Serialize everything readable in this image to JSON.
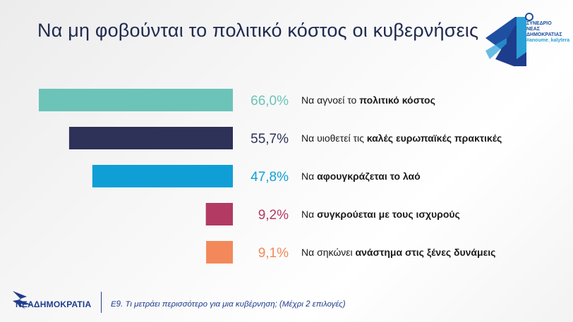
{
  "title": "Να μη φοβούνται το πολιτικό κόστος οι κυβερνήσεις",
  "logo": {
    "line1": "ΣΥΝΕΔΡΙΟ",
    "line2": "ΝΕΑΣ",
    "line3": "ΔΗΜΟΚΡΑΤΙΑΣ",
    "tag": "#anoume_kalytera",
    "party": "ΝΕΑΔΗΜΟΚΡΑΤΙΑ"
  },
  "footnote": {
    "code": "Ε9.",
    "question": "Τι μετράει περισσότερο για μια κυβέρνηση; (Μέχρι 2 επιλογές)"
  },
  "chart_data": {
    "type": "bar",
    "orientation": "horizontal",
    "categories": [
      "Να αγνοεί το πολιτικό κόστος",
      "Να υιοθετεί τις καλές ευρωπαϊκές πρακτικές",
      "Να αφουγκράζεται το λαό",
      "Να συγκρούεται με τους ισχυρούς",
      "Να σηκώνει ανάστημα στις ξένες δυνάμεις"
    ],
    "category_parts": [
      {
        "plain": "Να αγνοεί το ",
        "bold": "πολιτικό κόστος"
      },
      {
        "plain": "Να υιοθετεί τις ",
        "bold": "καλές ευρωπαϊκές πρακτικές"
      },
      {
        "plain": "Να ",
        "bold": "αφουγκράζεται το λαό"
      },
      {
        "plain": "Να ",
        "bold": "συγκρούεται με τους ισχυρούς"
      },
      {
        "plain": "Να σηκώνει ",
        "bold": "ανάστημα στις ξένες δυνάμεις"
      }
    ],
    "values": [
      66.0,
      55.7,
      47.8,
      9.2,
      9.1
    ],
    "value_labels": [
      "66,0%",
      "55,7%",
      "47,8%",
      "9,2%",
      "9,1%"
    ],
    "colors": [
      "#6cc3b8",
      "#2e3158",
      "#0f9fd6",
      "#b23a63",
      "#f3895a"
    ],
    "xlim": [
      0,
      66.0
    ],
    "title": "Να μη φοβούνται το πολιτικό κόστος οι κυβερνήσεις",
    "xlabel": "",
    "ylabel": "",
    "grid": false,
    "legend": "none"
  }
}
